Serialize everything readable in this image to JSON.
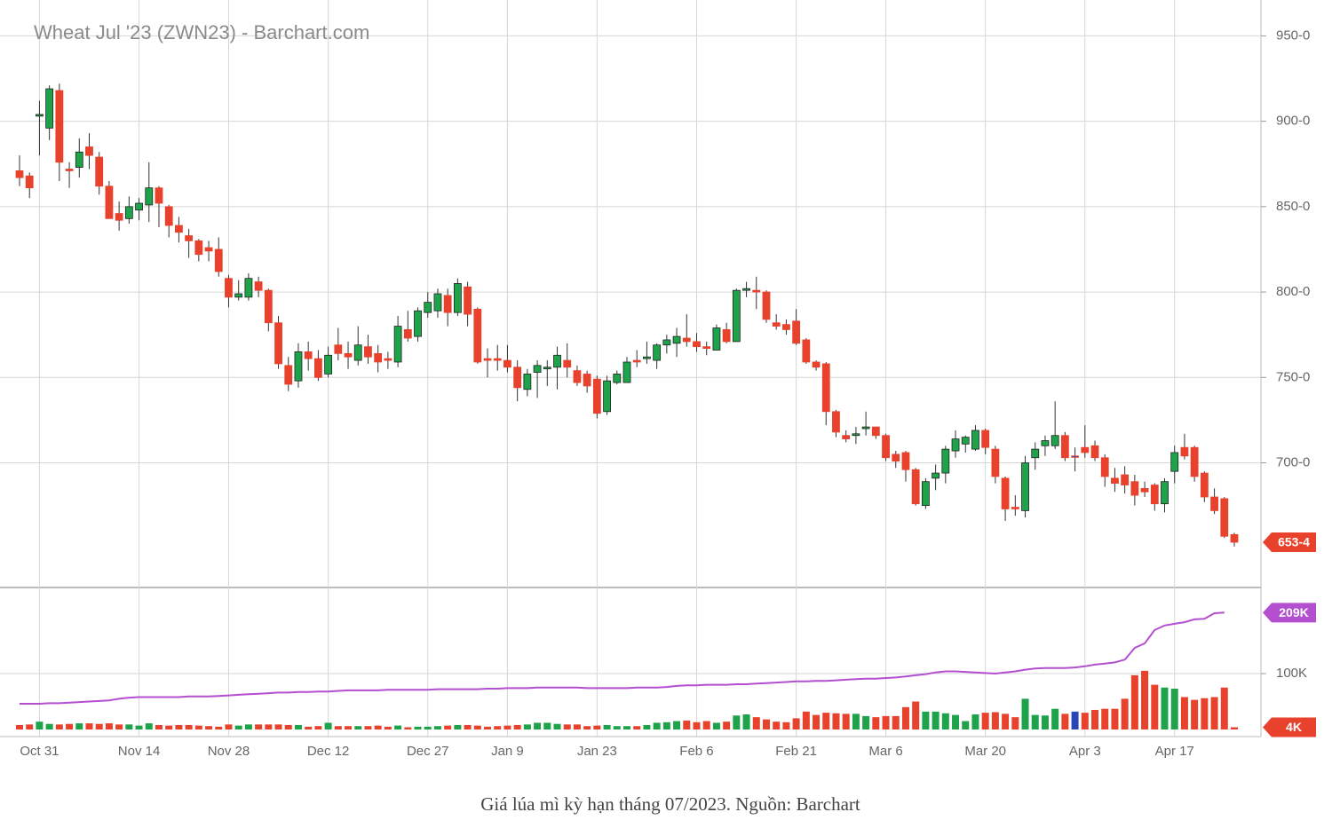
{
  "chart_data": {
    "type": "candlestick",
    "title": "Wheat Jul '23 (ZWN23) - Barchart.com",
    "categories": [
      null,
      null,
      "Oct 31",
      null,
      null,
      null,
      null,
      null,
      null,
      null,
      null,
      null,
      "Nov 14",
      null,
      null,
      null,
      null,
      null,
      null,
      null,
      null,
      "Nov 28",
      null,
      null,
      null,
      null,
      null,
      null,
      null,
      null,
      null,
      "Dec 12",
      null,
      null,
      null,
      null,
      null,
      null,
      null,
      null,
      null,
      "Dec 27",
      null,
      null,
      null,
      null,
      null,
      null,
      null,
      "Jan 9",
      null,
      null,
      null,
      null,
      null,
      null,
      null,
      null,
      "Jan 23",
      null,
      null,
      null,
      null,
      null,
      null,
      null,
      null,
      null,
      "Feb 6",
      null,
      null,
      null,
      null,
      null,
      null,
      null,
      null,
      null,
      "Feb 21",
      null,
      null,
      null,
      null,
      null,
      null,
      null,
      null,
      "Mar 6",
      null,
      null,
      null,
      null,
      null,
      null,
      null,
      null,
      null,
      "Mar 20",
      null,
      null,
      null,
      null,
      null,
      null,
      null,
      null,
      null,
      "Apr 3",
      null,
      null,
      null,
      null,
      null,
      null,
      null,
      null,
      "Apr 17",
      null,
      null,
      null,
      null,
      null,
      null
    ],
    "open": [
      871,
      868,
      903,
      896,
      918,
      872,
      873,
      885,
      879,
      862,
      846,
      843,
      848,
      851,
      861,
      850,
      839,
      833,
      830,
      826,
      825,
      808,
      797,
      797,
      806,
      801,
      782,
      757,
      748,
      765,
      761,
      752,
      769,
      764,
      760,
      768,
      764,
      761,
      759,
      778,
      774,
      788,
      789,
      798,
      788,
      803,
      790,
      761,
      761,
      760,
      756,
      743,
      753,
      755,
      756,
      760,
      754,
      752,
      749,
      730,
      747,
      747,
      760,
      761,
      760,
      769,
      770,
      773,
      771,
      768,
      766,
      778,
      771,
      801,
      801,
      800,
      782,
      781,
      783,
      772,
      759,
      758,
      730,
      716,
      716,
      720,
      721,
      716,
      705,
      706,
      696,
      675,
      691,
      694,
      707,
      711,
      708,
      719,
      708,
      691,
      674,
      672,
      703,
      710,
      710,
      716,
      704,
      709,
      710,
      703,
      691,
      693,
      689,
      685,
      687,
      676,
      695,
      709,
      709,
      694,
      680,
      679,
      658
    ],
    "high": [
      880,
      870,
      912,
      921,
      922,
      876,
      890,
      893,
      882,
      865,
      853,
      856,
      855,
      876,
      862,
      851,
      844,
      837,
      831,
      830,
      832,
      810,
      807,
      811,
      809,
      802,
      786,
      762,
      770,
      771,
      766,
      768,
      779,
      771,
      780,
      775,
      769,
      765,
      786,
      789,
      791,
      800,
      802,
      802,
      808,
      806,
      791,
      767,
      769,
      769,
      760,
      755,
      760,
      760,
      768,
      770,
      757,
      754,
      751,
      751,
      754,
      762,
      766,
      771,
      770,
      775,
      779,
      787,
      776,
      771,
      781,
      782,
      802,
      806,
      809,
      801,
      787,
      784,
      790,
      773,
      760,
      759,
      731,
      719,
      721,
      730,
      721,
      717,
      707,
      707,
      697,
      691,
      699,
      710,
      719,
      716,
      722,
      720,
      710,
      692,
      681,
      704,
      712,
      716,
      736,
      718,
      709,
      722,
      713,
      705,
      697,
      698,
      693,
      689,
      688,
      691,
      710,
      717,
      710,
      695,
      685,
      680,
      659
    ],
    "low": [
      862,
      855,
      880,
      889,
      865,
      861,
      867,
      872,
      857,
      843,
      836,
      840,
      842,
      841,
      838,
      832,
      829,
      820,
      818,
      818,
      809,
      791,
      795,
      795,
      797,
      777,
      755,
      742,
      744,
      754,
      748,
      750,
      760,
      755,
      757,
      758,
      753,
      755,
      756,
      771,
      771,
      785,
      785,
      780,
      786,
      780,
      758,
      750,
      754,
      753,
      736,
      739,
      738,
      745,
      743,
      750,
      745,
      741,
      726,
      728,
      746,
      747,
      756,
      758,
      755,
      764,
      762,
      768,
      765,
      763,
      766,
      770,
      771,
      797,
      790,
      782,
      778,
      775,
      769,
      758,
      754,
      722,
      715,
      712,
      711,
      716,
      714,
      701,
      697,
      689,
      675,
      673,
      684,
      688,
      703,
      706,
      707,
      705,
      688,
      666,
      669,
      668,
      696,
      704,
      708,
      701,
      695,
      703,
      701,
      686,
      683,
      682,
      675,
      680,
      672,
      671,
      688,
      702,
      689,
      677,
      670,
      656,
      651
    ],
    "close": [
      867,
      861,
      904,
      919,
      876,
      871,
      882,
      880,
      862,
      843,
      842,
      850,
      852,
      861,
      852,
      839,
      835,
      830,
      822,
      824,
      812,
      797,
      799,
      808,
      801,
      782,
      758,
      746,
      765,
      761,
      750,
      763,
      764,
      762,
      769,
      762,
      759,
      760,
      780,
      773,
      789,
      794,
      799,
      788,
      805,
      787,
      759,
      760,
      760,
      756,
      744,
      752,
      757,
      756,
      763,
      756,
      747,
      745,
      729,
      748,
      752,
      759,
      759,
      762,
      769,
      772,
      774,
      771,
      768,
      767,
      779,
      771,
      801,
      802,
      800,
      784,
      780,
      778,
      770,
      759,
      756,
      730,
      718,
      714,
      717,
      721,
      716,
      703,
      701,
      696,
      676,
      689,
      694,
      708,
      714,
      715,
      719,
      709,
      692,
      673,
      673,
      700,
      708,
      713,
      716,
      703,
      704,
      706,
      703,
      692,
      688,
      687,
      681,
      683,
      676,
      689,
      706,
      704,
      692,
      680,
      672,
      657,
      653.5
    ],
    "last_label": "653-4",
    "ylim": [
      627,
      971
    ],
    "yticks": [
      {
        "value": 950,
        "label": "950-0"
      },
      {
        "value": 900,
        "label": "900-0"
      },
      {
        "value": 850,
        "label": "850-0"
      },
      {
        "value": 800,
        "label": "800-0"
      },
      {
        "value": 750,
        "label": "750-0"
      },
      {
        "value": 700,
        "label": "700-0"
      }
    ],
    "grid": true,
    "up_color": "#1fa34a",
    "down_color": "#e8412c",
    "flat_color": "#2846b8",
    "volume": {
      "values": [
        8000,
        9000,
        14000,
        10000,
        9000,
        10000,
        11000,
        11000,
        10000,
        11000,
        9000,
        9000,
        7000,
        11000,
        8000,
        7000,
        8000,
        8000,
        7000,
        6000,
        5000,
        9000,
        7000,
        9000,
        9000,
        9000,
        9000,
        8000,
        8000,
        5000,
        6000,
        12000,
        6000,
        6000,
        6000,
        6000,
        7000,
        5000,
        7000,
        4000,
        5000,
        5000,
        6000,
        7000,
        8000,
        8000,
        7000,
        5000,
        6000,
        7000,
        8000,
        9000,
        12000,
        12000,
        10000,
        9000,
        9000,
        6000,
        7000,
        8000,
        6000,
        6000,
        6000,
        8000,
        12000,
        13000,
        15000,
        16000,
        13000,
        15000,
        12000,
        14000,
        25000,
        27000,
        22000,
        18000,
        14000,
        13000,
        20000,
        32000,
        26000,
        30000,
        29000,
        28000,
        28000,
        24000,
        22000,
        24000,
        24000,
        40000,
        50000,
        32000,
        32000,
        29000,
        26000,
        15000,
        27000,
        30000,
        31000,
        28000,
        22000,
        55000,
        26000,
        25000,
        37000,
        28000,
        32000,
        30000,
        35000,
        37000,
        37000,
        55000,
        97000,
        105000,
        80000,
        75000,
        73000,
        58000,
        53000,
        56000,
        58000,
        75000,
        4000
      ],
      "last_label": "4K"
    },
    "open_interest": {
      "values": [
        46000,
        46000,
        46000,
        47000,
        47000,
        48000,
        49000,
        50000,
        51000,
        52000,
        55000,
        57000,
        58000,
        58000,
        58000,
        58000,
        58000,
        59000,
        59000,
        59000,
        60000,
        61000,
        62000,
        63000,
        64000,
        65000,
        66000,
        66000,
        67000,
        67000,
        68000,
        68000,
        69000,
        70000,
        70000,
        70000,
        70000,
        71000,
        71000,
        71000,
        71000,
        71000,
        72000,
        72000,
        72000,
        72000,
        72000,
        73000,
        73000,
        74000,
        74000,
        74000,
        75000,
        75000,
        75000,
        75000,
        75000,
        74000,
        74000,
        74000,
        74000,
        74000,
        75000,
        75000,
        75000,
        76000,
        78000,
        79000,
        79000,
        80000,
        80000,
        80000,
        81000,
        81000,
        82000,
        83000,
        84000,
        85000,
        86000,
        86000,
        87000,
        87000,
        88000,
        89000,
        90000,
        91000,
        91000,
        92000,
        93000,
        95000,
        97000,
        99000,
        102000,
        104000,
        104000,
        103000,
        102000,
        101000,
        100000,
        102000,
        104000,
        107000,
        109000,
        110000,
        110000,
        110000,
        111000,
        113000,
        116000,
        118000,
        120000,
        125000,
        146000,
        154000,
        178000,
        186000,
        189000,
        192000,
        197000,
        198000,
        208000,
        209000,
        null
      ],
      "color": "#b44fd0",
      "last_label": "209K"
    },
    "vlim": [
      0,
      254000
    ],
    "vticks": [
      {
        "value": 100000,
        "label": "100K"
      }
    ]
  },
  "caption": "Giá lúa mì kỳ hạn tháng 07/2023. Nguồn: Barchart"
}
